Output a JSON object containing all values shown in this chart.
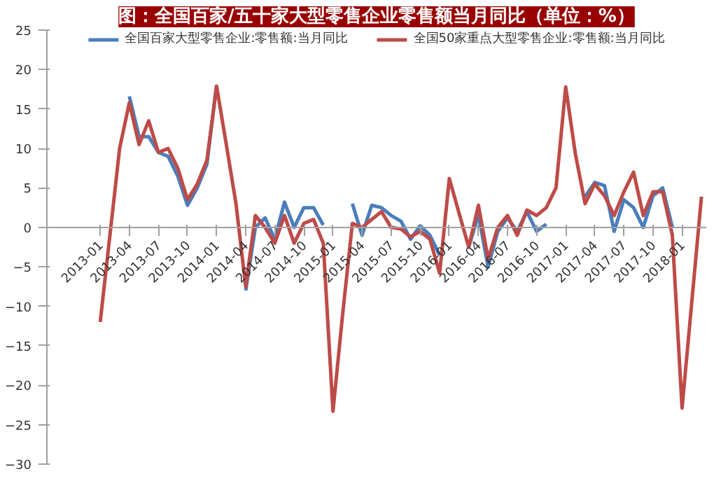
{
  "chart_data": {
    "type": "line",
    "title": "图：全国百家/五十家大型零售企业零售额当月同比（单位：%）",
    "categories": [
      "2013-01",
      null,
      null,
      "2013-04",
      null,
      null,
      "2013-07",
      null,
      null,
      "2013-10",
      null,
      null,
      "2014-01",
      null,
      null,
      "2014-04",
      null,
      null,
      "2014-07",
      null,
      null,
      "2014-10",
      null,
      null,
      "2015-01",
      null,
      null,
      "2015-04",
      null,
      null,
      "2015-07",
      null,
      null,
      "2015-10",
      null,
      null,
      "2016-01",
      null,
      null,
      "2016-04",
      null,
      null,
      "2016-07",
      null,
      null,
      "2016-10",
      null,
      null,
      "2017-01",
      null,
      null,
      "2017-04",
      null,
      null,
      "2017-07",
      null,
      null,
      "2017-10",
      null,
      null,
      "2018-01",
      null,
      null
    ],
    "series": [
      {
        "name": "全国百家大型零售企业:零售额:当月同比",
        "color": "#4a7ebb",
        "values": [
          null,
          null,
          null,
          16.6,
          11.5,
          11.5,
          9.5,
          9,
          6.5,
          2.8,
          5,
          8,
          18,
          null,
          null,
          -8,
          0,
          1.2,
          -1.5,
          3.2,
          0,
          2.5,
          2.5,
          0.3,
          null,
          null,
          3,
          -1,
          2.8,
          2.5,
          1.5,
          0.8,
          -1.5,
          0.2,
          -1,
          -3.5,
          null,
          null,
          -2.5,
          1.6,
          -5,
          -0.5,
          1.2,
          -0.5,
          2,
          -0.5,
          0.4,
          null,
          null,
          null,
          3.9,
          5.7,
          5.3,
          -0.5,
          3.5,
          2.5,
          0,
          4,
          5,
          0,
          null,
          null,
          null
        ]
      },
      {
        "name": "全国50家重点大型零售企业:零售额:当月同比",
        "color": "#be4b48",
        "values": [
          -12,
          -1,
          10,
          15.8,
          10.5,
          13.5,
          9.5,
          10,
          7.5,
          3.5,
          5.5,
          8.5,
          17.9,
          10.5,
          3,
          -7.5,
          1.5,
          0,
          -2,
          1.5,
          -2,
          0.5,
          1,
          -2,
          -23.3,
          -11,
          0.5,
          0,
          1,
          2,
          0,
          -0.2,
          -1.2,
          -0.5,
          -1.5,
          -5.8,
          6.2,
          1.8,
          -2.5,
          2.8,
          -4,
          0,
          1.5,
          -1,
          2.2,
          1.5,
          2.5,
          5,
          17.8,
          9.3,
          3,
          5.5,
          4,
          1.5,
          4.5,
          7,
          1.5,
          4.5,
          4.5,
          -1,
          -22.9,
          -9.5,
          3.9
        ]
      }
    ],
    "ylim": [
      -30,
      25
    ],
    "yticks": [
      -30,
      -25,
      -20,
      -15,
      -10,
      -5,
      0,
      5,
      10,
      15,
      20,
      25
    ],
    "grid": false,
    "legend": "top",
    "line_style": "solid"
  }
}
